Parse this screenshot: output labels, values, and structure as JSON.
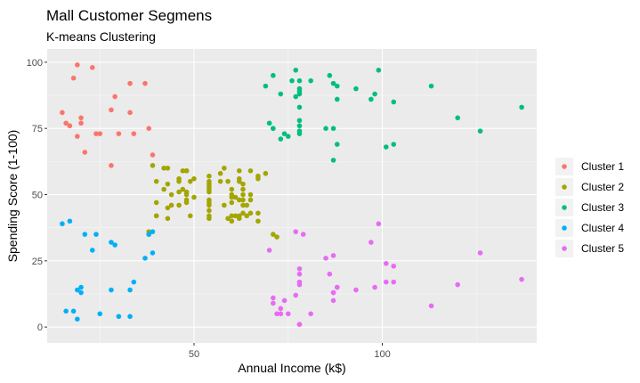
{
  "chart_data": {
    "type": "scatter",
    "title": "Mall Customer Segmens",
    "subtitle": "K-means Clustering",
    "xlabel": "Annual Income (k$)",
    "ylabel": "Spending Score (1-100)",
    "xlim": [
      11,
      141
    ],
    "ylim": [
      -6,
      105
    ],
    "xticks": [
      50,
      100
    ],
    "yticks": [
      0,
      25,
      50,
      75,
      100
    ],
    "grid": true,
    "legend_position": "right",
    "series": [
      {
        "name": "Cluster 1",
        "color": "#F8766D",
        "points": [
          [
            15,
            81
          ],
          [
            16,
            77
          ],
          [
            17,
            76
          ],
          [
            18,
            94
          ],
          [
            19,
            99
          ],
          [
            19,
            72
          ],
          [
            20,
            79
          ],
          [
            20,
            77
          ],
          [
            21,
            66
          ],
          [
            23,
            98
          ],
          [
            24,
            73
          ],
          [
            25,
            73
          ],
          [
            28,
            82
          ],
          [
            28,
            61
          ],
          [
            29,
            87
          ],
          [
            30,
            73
          ],
          [
            33,
            92
          ],
          [
            33,
            81
          ],
          [
            34,
            73
          ],
          [
            37,
            92
          ],
          [
            38,
            75
          ],
          [
            39,
            65
          ]
        ]
      },
      {
        "name": "Cluster 2",
        "color": "#A3A500",
        "points": [
          [
            38,
            35
          ],
          [
            38,
            36
          ],
          [
            39,
            61
          ],
          [
            40,
            55
          ],
          [
            40,
            47
          ],
          [
            40,
            42
          ],
          [
            40,
            42
          ],
          [
            42,
            52
          ],
          [
            42,
            60
          ],
          [
            43,
            54
          ],
          [
            43,
            60
          ],
          [
            43,
            45
          ],
          [
            43,
            41
          ],
          [
            44,
            50
          ],
          [
            44,
            46
          ],
          [
            46,
            51
          ],
          [
            46,
            46
          ],
          [
            46,
            56
          ],
          [
            46,
            55
          ],
          [
            47,
            52
          ],
          [
            47,
            59
          ],
          [
            48,
            51
          ],
          [
            48,
            59
          ],
          [
            48,
            50
          ],
          [
            48,
            48
          ],
          [
            48,
            59
          ],
          [
            48,
            47
          ],
          [
            49,
            55
          ],
          [
            49,
            42
          ],
          [
            50,
            49
          ],
          [
            50,
            56
          ],
          [
            54,
            47
          ],
          [
            54,
            54
          ],
          [
            54,
            53
          ],
          [
            54,
            48
          ],
          [
            54,
            52
          ],
          [
            54,
            42
          ],
          [
            54,
            51
          ],
          [
            54,
            55
          ],
          [
            54,
            41
          ],
          [
            54,
            44
          ],
          [
            54,
            57
          ],
          [
            54,
            46
          ],
          [
            57,
            58
          ],
          [
            57,
            55
          ],
          [
            58,
            60
          ],
          [
            58,
            46
          ],
          [
            59,
            55
          ],
          [
            59,
            41
          ],
          [
            60,
            49
          ],
          [
            60,
            40
          ],
          [
            60,
            42
          ],
          [
            60,
            52
          ],
          [
            60,
            47
          ],
          [
            60,
            50
          ],
          [
            61,
            42
          ],
          [
            61,
            49
          ],
          [
            62,
            41
          ],
          [
            62,
            48
          ],
          [
            62,
            59
          ],
          [
            62,
            55
          ],
          [
            62,
            56
          ],
          [
            62,
            42
          ],
          [
            63,
            50
          ],
          [
            63,
            46
          ],
          [
            63,
            43
          ],
          [
            63,
            48
          ],
          [
            63,
            52
          ],
          [
            63,
            54
          ],
          [
            64,
            42
          ],
          [
            64,
            46
          ],
          [
            65,
            48
          ],
          [
            65,
            50
          ],
          [
            65,
            43
          ],
          [
            65,
            59
          ],
          [
            67,
            43
          ],
          [
            67,
            57
          ],
          [
            67,
            56
          ],
          [
            67,
            40
          ],
          [
            69,
            58
          ],
          [
            71,
            35
          ],
          [
            72,
            34
          ]
        ]
      },
      {
        "name": "Cluster 3",
        "color": "#00BF7D",
        "points": [
          [
            69,
            91
          ],
          [
            70,
            77
          ],
          [
            71,
            95
          ],
          [
            71,
            75
          ],
          [
            71,
            75
          ],
          [
            73,
            71
          ],
          [
            73,
            88
          ],
          [
            74,
            73
          ],
          [
            75,
            72
          ],
          [
            76,
            93
          ],
          [
            77,
            87
          ],
          [
            77,
            97
          ],
          [
            78,
            74
          ],
          [
            78,
            90
          ],
          [
            78,
            88
          ],
          [
            78,
            76
          ],
          [
            78,
            89
          ],
          [
            78,
            78
          ],
          [
            78,
            73
          ],
          [
            78,
            83
          ],
          [
            78,
            93
          ],
          [
            81,
            93
          ],
          [
            85,
            75
          ],
          [
            86,
            95
          ],
          [
            87,
            63
          ],
          [
            87,
            75
          ],
          [
            87,
            92
          ],
          [
            88,
            86
          ],
          [
            88,
            69
          ],
          [
            88,
            91
          ],
          [
            93,
            90
          ],
          [
            97,
            86
          ],
          [
            98,
            88
          ],
          [
            99,
            97
          ],
          [
            101,
            68
          ],
          [
            103,
            85
          ],
          [
            103,
            69
          ],
          [
            113,
            91
          ],
          [
            120,
            79
          ],
          [
            126,
            74
          ],
          [
            137,
            83
          ]
        ]
      },
      {
        "name": "Cluster 4",
        "color": "#00B0F6",
        "points": [
          [
            15,
            39
          ],
          [
            16,
            6
          ],
          [
            17,
            40
          ],
          [
            18,
            6
          ],
          [
            19,
            3
          ],
          [
            19,
            14
          ],
          [
            20,
            15
          ],
          [
            20,
            13
          ],
          [
            21,
            35
          ],
          [
            23,
            29
          ],
          [
            24,
            35
          ],
          [
            25,
            5
          ],
          [
            28,
            14
          ],
          [
            28,
            32
          ],
          [
            29,
            31
          ],
          [
            30,
            4
          ],
          [
            33,
            4
          ],
          [
            33,
            14
          ],
          [
            34,
            17
          ],
          [
            37,
            26
          ],
          [
            38,
            35
          ],
          [
            39,
            36
          ],
          [
            39,
            28
          ]
        ]
      },
      {
        "name": "Cluster 5",
        "color": "#E76BF3",
        "points": [
          [
            70,
            29
          ],
          [
            71,
            11
          ],
          [
            71,
            9
          ],
          [
            72,
            5
          ],
          [
            73,
            7
          ],
          [
            73,
            5
          ],
          [
            74,
            10
          ],
          [
            75,
            5
          ],
          [
            77,
            12
          ],
          [
            77,
            36
          ],
          [
            78,
            22
          ],
          [
            78,
            17
          ],
          [
            78,
            20
          ],
          [
            78,
            16
          ],
          [
            78,
            1
          ],
          [
            78,
            1
          ],
          [
            79,
            35
          ],
          [
            81,
            5
          ],
          [
            85,
            26
          ],
          [
            86,
            20
          ],
          [
            87,
            27
          ],
          [
            87,
            13
          ],
          [
            87,
            10
          ],
          [
            87,
            13
          ],
          [
            88,
            15
          ],
          [
            88,
            15
          ],
          [
            93,
            14
          ],
          [
            97,
            32
          ],
          [
            98,
            15
          ],
          [
            99,
            39
          ],
          [
            101,
            24
          ],
          [
            101,
            17
          ],
          [
            103,
            23
          ],
          [
            103,
            17
          ],
          [
            113,
            8
          ],
          [
            120,
            16
          ],
          [
            126,
            28
          ],
          [
            137,
            18
          ]
        ]
      }
    ]
  }
}
